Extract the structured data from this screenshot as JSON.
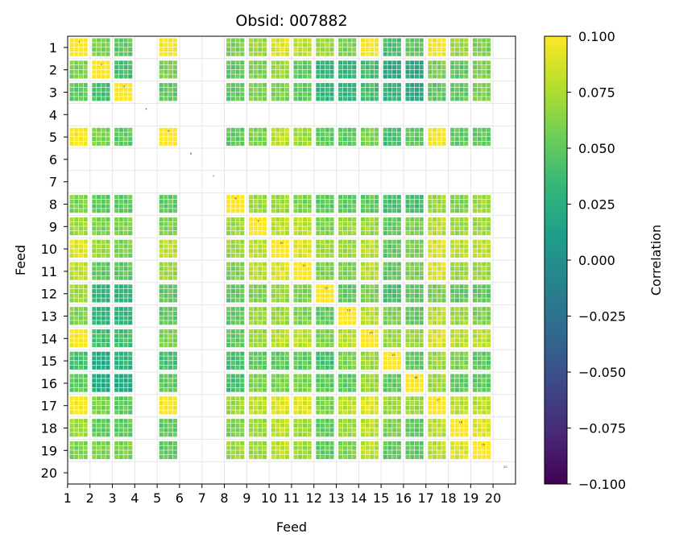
{
  "chart_data": {
    "type": "heatmap",
    "title": "Obsid: 007882",
    "xlabel": "Feed",
    "ylabel": "Feed",
    "x_ticks": [
      "1",
      "2",
      "3",
      "4",
      "5",
      "6",
      "7",
      "8",
      "9",
      "10",
      "11",
      "12",
      "13",
      "14",
      "15",
      "16",
      "17",
      "18",
      "19",
      "20"
    ],
    "y_ticks": [
      "1",
      "2",
      "3",
      "4",
      "5",
      "6",
      "7",
      "8",
      "9",
      "10",
      "11",
      "12",
      "13",
      "14",
      "15",
      "16",
      "17",
      "18",
      "19",
      "20"
    ],
    "colorbar": {
      "label": "Correlation",
      "colormap": "viridis",
      "vmin": -0.1,
      "vmax": 0.1,
      "ticks": [
        0.1,
        0.075,
        0.05,
        0.025,
        0.0,
        -0.025,
        -0.05,
        -0.075,
        -0.1
      ],
      "tick_labels": [
        "0.100",
        "0.075",
        "0.050",
        "0.025",
        "0.000",
        "−0.025",
        "−0.050",
        "−0.075",
        "−0.100"
      ],
      "stops": [
        "#440154",
        "#482878",
        "#3e4989",
        "#31688e",
        "#26828e",
        "#1f9e89",
        "#35b779",
        "#6ece58",
        "#b5de2b",
        "#fde725"
      ]
    },
    "grid": true,
    "blank_feeds": [
      4,
      6,
      7,
      20
    ],
    "feeds": [
      1,
      2,
      3,
      5,
      8,
      9,
      10,
      11,
      12,
      13,
      14,
      15,
      16,
      17,
      18,
      19
    ],
    "block_correlation": [
      [
        0.1,
        0.06,
        0.05,
        0.1,
        0.06,
        0.07,
        0.09,
        0.08,
        0.07,
        0.06,
        0.1,
        0.04,
        0.05,
        0.1,
        0.07,
        0.06
      ],
      [
        0.06,
        0.1,
        0.04,
        0.06,
        0.05,
        0.06,
        0.07,
        0.05,
        0.03,
        0.03,
        0.04,
        0.02,
        0.02,
        0.06,
        0.05,
        0.06
      ],
      [
        0.05,
        0.04,
        0.1,
        0.05,
        0.05,
        0.06,
        0.06,
        0.05,
        0.03,
        0.03,
        0.04,
        0.03,
        0.02,
        0.05,
        0.05,
        0.06
      ],
      [
        0.1,
        0.06,
        0.05,
        0.1,
        0.05,
        0.06,
        0.08,
        0.07,
        0.05,
        0.05,
        0.06,
        0.04,
        0.05,
        0.1,
        0.05,
        0.05
      ],
      [
        0.06,
        0.05,
        0.05,
        0.05,
        0.1,
        0.07,
        0.07,
        0.06,
        0.05,
        0.05,
        0.05,
        0.04,
        0.04,
        0.07,
        0.06,
        0.07
      ],
      [
        0.07,
        0.06,
        0.06,
        0.06,
        0.07,
        0.1,
        0.08,
        0.08,
        0.06,
        0.07,
        0.07,
        0.05,
        0.06,
        0.08,
        0.07,
        0.07
      ],
      [
        0.09,
        0.07,
        0.06,
        0.08,
        0.07,
        0.08,
        0.1,
        0.09,
        0.07,
        0.07,
        0.08,
        0.05,
        0.06,
        0.09,
        0.08,
        0.08
      ],
      [
        0.08,
        0.05,
        0.05,
        0.07,
        0.06,
        0.08,
        0.09,
        0.1,
        0.06,
        0.06,
        0.08,
        0.05,
        0.06,
        0.09,
        0.07,
        0.07
      ],
      [
        0.07,
        0.03,
        0.03,
        0.05,
        0.05,
        0.06,
        0.07,
        0.06,
        0.1,
        0.05,
        0.06,
        0.04,
        0.05,
        0.06,
        0.05,
        0.05
      ],
      [
        0.06,
        0.03,
        0.03,
        0.05,
        0.05,
        0.07,
        0.07,
        0.06,
        0.05,
        0.1,
        0.08,
        0.06,
        0.05,
        0.08,
        0.07,
        0.06
      ],
      [
        0.1,
        0.04,
        0.04,
        0.06,
        0.05,
        0.07,
        0.08,
        0.08,
        0.06,
        0.08,
        0.1,
        0.07,
        0.07,
        0.09,
        0.08,
        0.08
      ],
      [
        0.04,
        0.02,
        0.03,
        0.04,
        0.04,
        0.05,
        0.05,
        0.05,
        0.04,
        0.06,
        0.07,
        0.1,
        0.05,
        0.07,
        0.06,
        0.05
      ],
      [
        0.05,
        0.02,
        0.02,
        0.05,
        0.04,
        0.06,
        0.06,
        0.06,
        0.05,
        0.05,
        0.07,
        0.05,
        0.1,
        0.07,
        0.05,
        0.05
      ],
      [
        0.1,
        0.06,
        0.05,
        0.1,
        0.07,
        0.08,
        0.09,
        0.09,
        0.06,
        0.08,
        0.09,
        0.07,
        0.07,
        0.1,
        0.08,
        0.08
      ],
      [
        0.07,
        0.05,
        0.05,
        0.05,
        0.06,
        0.07,
        0.08,
        0.07,
        0.05,
        0.07,
        0.08,
        0.06,
        0.05,
        0.08,
        0.1,
        0.09
      ],
      [
        0.06,
        0.06,
        0.06,
        0.05,
        0.07,
        0.07,
        0.08,
        0.07,
        0.05,
        0.06,
        0.08,
        0.05,
        0.05,
        0.08,
        0.09,
        0.1
      ]
    ]
  }
}
